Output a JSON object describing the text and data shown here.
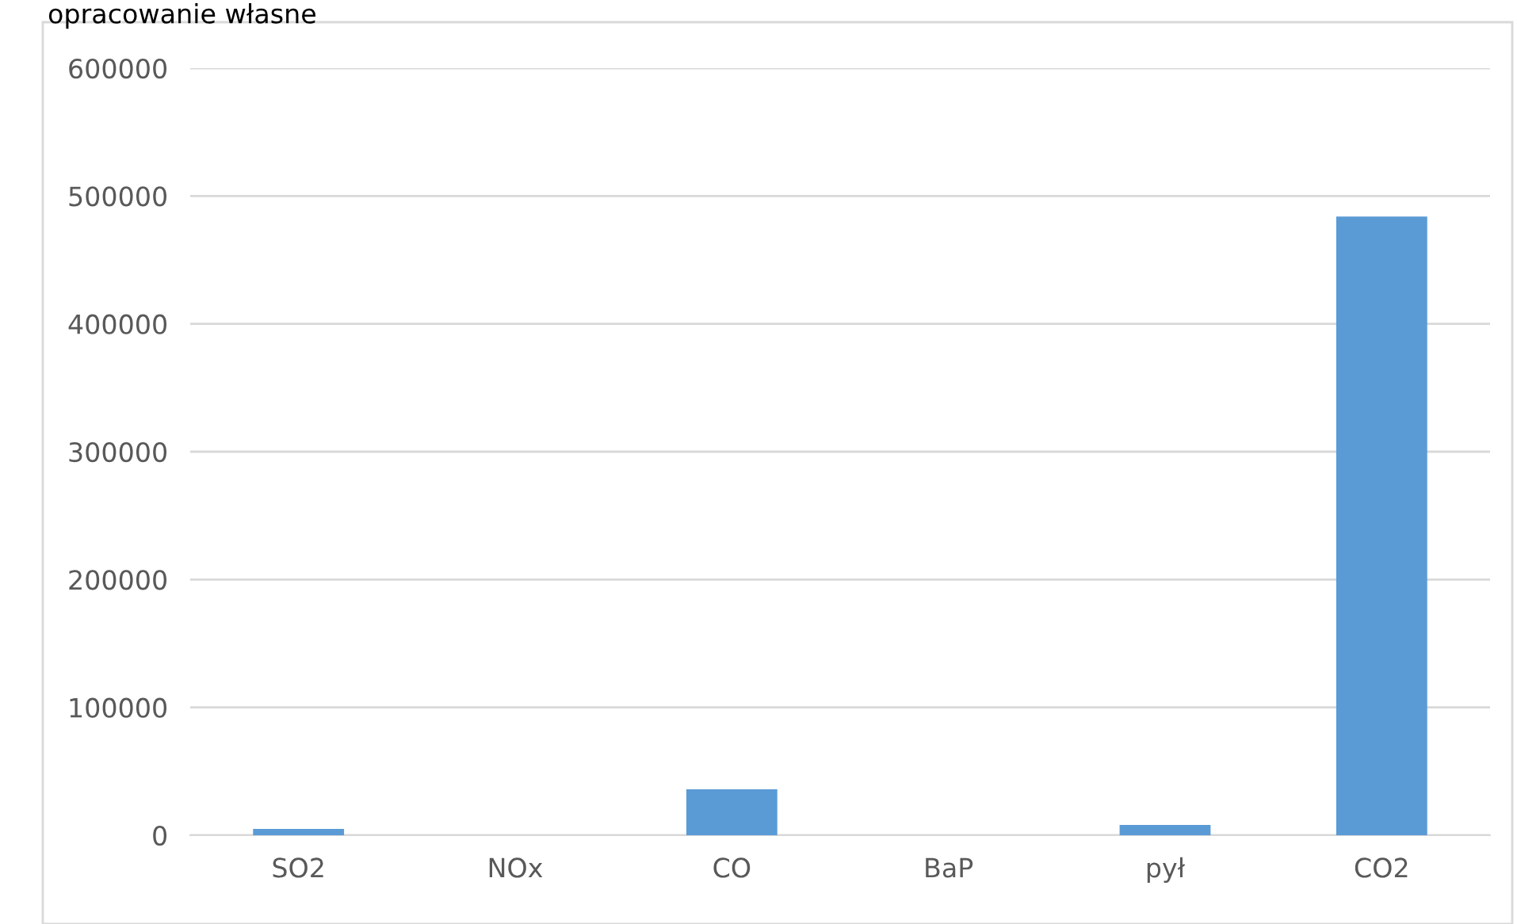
{
  "chart_data": {
    "type": "bar",
    "categories": [
      "SO2",
      "NOx",
      "CO",
      "BaP",
      "pył",
      "CO2"
    ],
    "values": [
      5000,
      0,
      36000,
      0,
      8000,
      484000
    ],
    "color": "#5b9bd5",
    "ylim": [
      0,
      600000
    ],
    "yticks": [
      0,
      100000,
      200000,
      300000,
      400000,
      500000,
      600000
    ],
    "grid": "y",
    "annotations": [
      "opracowanie własne"
    ]
  }
}
